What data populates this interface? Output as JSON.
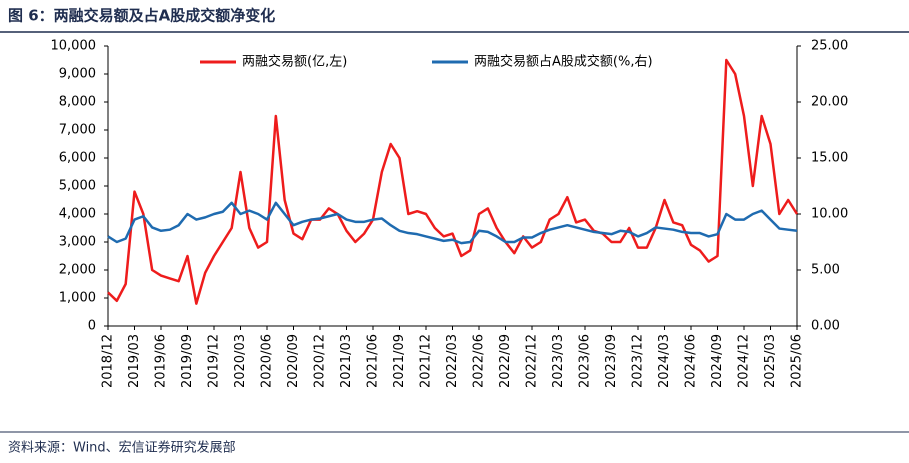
{
  "chart_data": {
    "type": "line",
    "title": "图 6：两融交易额及占A股成交额净变化",
    "source": "资料来源：Wind、宏信证券研究发展部",
    "categories": [
      "2018/12",
      null,
      null,
      "2019/03",
      null,
      null,
      "2019/06",
      null,
      null,
      "2019/09",
      null,
      null,
      "2019/12",
      null,
      null,
      "2020/03",
      null,
      null,
      "2020/06",
      null,
      null,
      "2020/09",
      null,
      null,
      "2020/12",
      null,
      null,
      "2021/03",
      null,
      null,
      "2021/06",
      null,
      null,
      "2021/09",
      null,
      null,
      "2021/12",
      null,
      null,
      "2022/03",
      null,
      null,
      "2022/06",
      null,
      null,
      "2022/09",
      null,
      null,
      "2022/12",
      null,
      null,
      "2023/03",
      null,
      null,
      "2023/06",
      null,
      null,
      "2023/09",
      null,
      null,
      "2023/12",
      null,
      null,
      "2024/03",
      null,
      null,
      "2024/06",
      null,
      null,
      "2024/09",
      null,
      null,
      "2024/12",
      null,
      null,
      "2025/03",
      null,
      null,
      "2025/06"
    ],
    "series": [
      {
        "name": "两融交易额(亿,左)",
        "color": "#ee1c1c",
        "axis": "y",
        "values": [
          1200,
          900,
          1500,
          4800,
          4000,
          2000,
          1800,
          1700,
          1600,
          2500,
          800,
          1900,
          2500,
          3000,
          3500,
          5500,
          3500,
          2800,
          3000,
          7500,
          4500,
          3300,
          3100,
          3800,
          3800,
          4200,
          4000,
          3400,
          3000,
          3300,
          3800,
          5500,
          6500,
          6000,
          4000,
          4100,
          4000,
          3500,
          3200,
          3300,
          2500,
          2700,
          4000,
          4200,
          3500,
          3000,
          2600,
          3200,
          2800,
          3000,
          3800,
          4000,
          4600,
          3700,
          3800,
          3400,
          3300,
          3000,
          3000,
          3500,
          2800,
          2800,
          3500,
          4500,
          3700,
          3600,
          2900,
          2700,
          2300,
          2500,
          9500,
          9000,
          7500,
          5000,
          7500,
          6500,
          4000,
          4500,
          4000
        ]
      },
      {
        "name": "两融交易额占A股成交额(%,右)",
        "color": "#1f6bb0",
        "axis": "y2",
        "values": [
          8,
          7.5,
          7.8,
          9.5,
          9.8,
          8.8,
          8.5,
          8.6,
          9.0,
          10.0,
          9.5,
          9.7,
          10.0,
          10.2,
          11.0,
          10.0,
          10.3,
          10.0,
          9.5,
          11.0,
          10.0,
          9.0,
          9.3,
          9.5,
          9.6,
          9.8,
          10.0,
          9.5,
          9.3,
          9.3,
          9.5,
          9.6,
          9.0,
          8.5,
          8.3,
          8.2,
          8.0,
          7.8,
          7.6,
          7.7,
          7.4,
          7.5,
          8.5,
          8.4,
          8.0,
          7.5,
          7.5,
          7.9,
          7.9,
          8.3,
          8.6,
          8.8,
          9.0,
          8.8,
          8.6,
          8.4,
          8.3,
          8.2,
          8.5,
          8.4,
          8.0,
          8.3,
          8.8,
          8.7,
          8.6,
          8.4,
          8.3,
          8.3,
          8.0,
          8.2,
          10.0,
          9.5,
          9.5,
          10.0,
          10.3,
          9.5,
          8.7,
          8.6,
          8.5
        ]
      }
    ],
    "ylim": [
      0,
      10000
    ],
    "yticks": [
      0,
      {
        "value": 1000,
        "label": "1,000"
      },
      {
        "value": 2000,
        "label": "2,000"
      },
      {
        "value": 3000,
        "label": "3,000"
      },
      {
        "value": 4000,
        "label": "4,000"
      },
      {
        "value": 5000,
        "label": "5,000"
      },
      {
        "value": 6000,
        "label": "6,000"
      },
      {
        "value": 7000,
        "label": "7,000"
      },
      {
        "value": 8000,
        "label": "8,000"
      },
      {
        "value": 9000,
        "label": "9,000"
      },
      {
        "value": 10000,
        "label": "10,000"
      }
    ],
    "y2lim": [
      0,
      25
    ],
    "y2ticks": [
      {
        "value": 0,
        "label": "0.00"
      },
      {
        "value": 5,
        "label": "5.00"
      },
      {
        "value": 10,
        "label": "10.00"
      },
      {
        "value": 15,
        "label": "15.00"
      },
      {
        "value": 20,
        "label": "20.00"
      },
      {
        "value": 25,
        "label": "25.00"
      }
    ]
  }
}
